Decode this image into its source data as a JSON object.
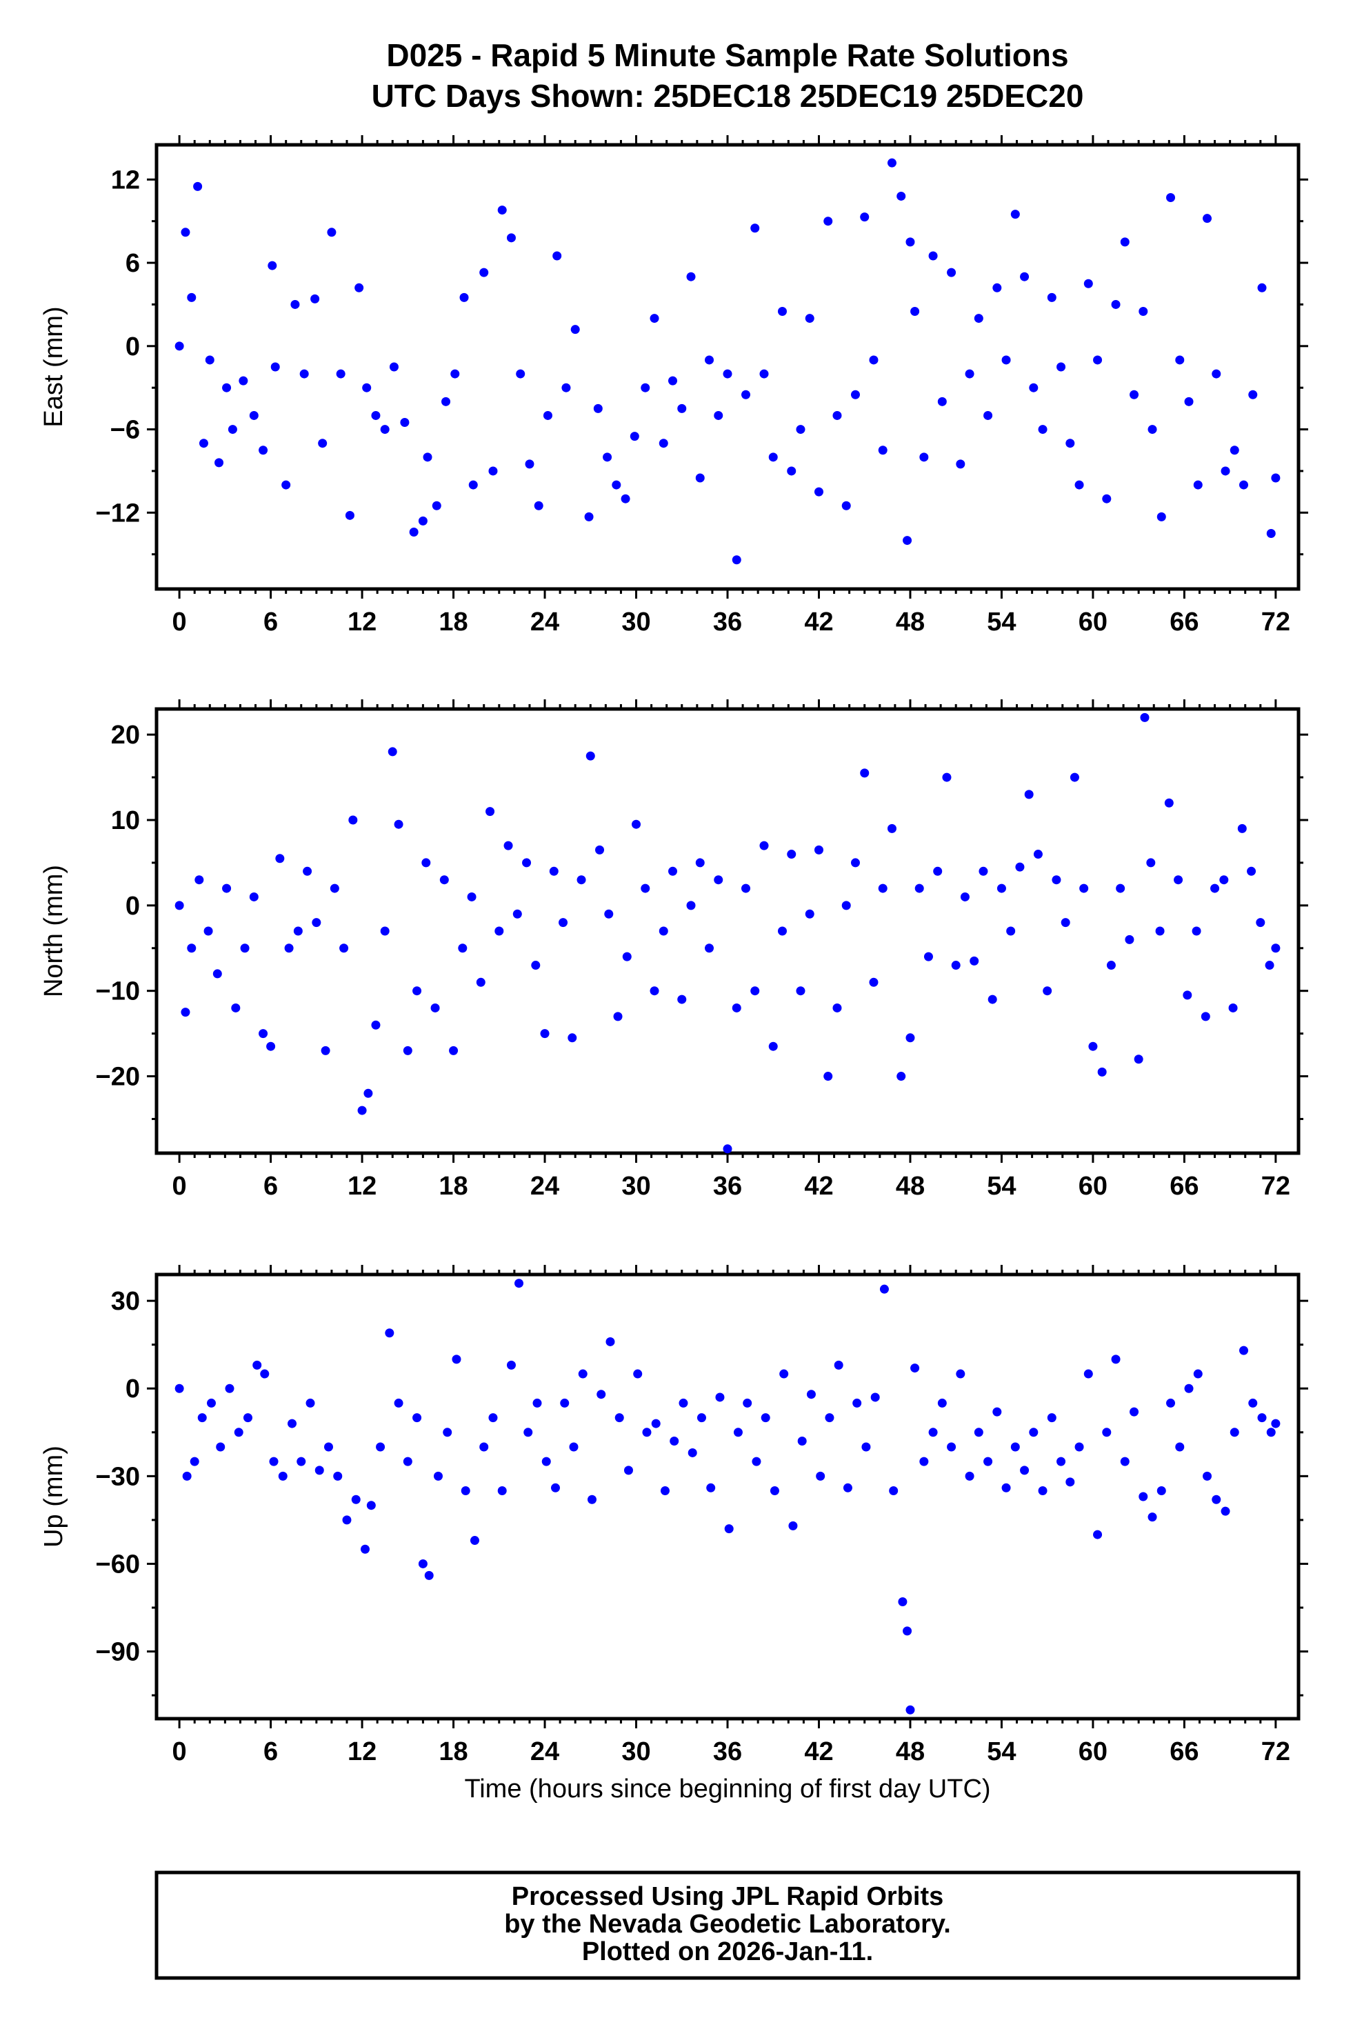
{
  "chart_data": [
    {
      "type": "scatter",
      "title": "D025 - Rapid 5 Minute Sample Rate Solutions",
      "subtitle": "UTC Days Shown:  25DEC18 25DEC19 25DEC20",
      "xlabel": "",
      "ylabel": "East (mm)",
      "xlim": [
        -1.5,
        73.5
      ],
      "ylim": [
        -17.5,
        14.5
      ],
      "xticks": [
        0,
        6,
        12,
        18,
        24,
        30,
        36,
        42,
        48,
        54,
        60,
        66,
        72
      ],
      "yticks": [
        12,
        6,
        0,
        -6,
        -12
      ],
      "marker_color": "#0000ff",
      "series": [
        {
          "x": [
            0.0,
            0.4,
            0.8,
            1.2,
            1.6,
            2.0,
            2.6,
            3.1,
            3.5,
            4.2,
            4.9,
            5.5,
            6.1,
            6.3,
            7.0,
            7.6,
            8.2,
            8.9,
            9.4,
            10.0,
            10.6,
            11.2,
            11.8,
            12.3,
            12.9,
            13.5,
            14.1,
            14.8,
            15.4,
            16.0,
            16.3,
            16.9,
            17.5,
            18.1,
            18.7,
            19.3,
            20.0,
            20.6,
            21.2,
            21.8,
            22.4,
            23.0,
            23.6,
            24.2,
            24.8,
            25.4,
            26.0,
            26.9,
            27.5,
            28.1,
            28.7,
            29.3,
            29.9,
            30.6,
            31.2,
            31.8,
            32.4,
            33.0,
            33.6,
            34.2,
            34.8,
            35.4,
            36.0,
            36.6,
            37.2,
            37.8,
            38.4,
            39.0,
            39.6,
            40.2,
            40.8,
            41.4,
            42.0,
            42.6,
            43.2,
            43.8,
            44.4,
            45.0,
            45.6,
            46.2,
            46.8,
            47.4,
            47.8,
            48.0,
            48.3,
            48.9,
            49.5,
            50.1,
            50.7,
            51.3,
            51.9,
            52.5,
            53.1,
            53.7,
            54.3,
            54.9,
            55.5,
            56.1,
            56.7,
            57.3,
            57.9,
            58.5,
            59.1,
            59.7,
            60.3,
            60.9,
            61.5,
            62.1,
            62.7,
            63.3,
            63.9,
            64.5,
            65.1,
            65.7,
            66.3,
            66.9,
            67.5,
            68.1,
            68.7,
            69.3,
            69.9,
            70.5,
            71.1,
            71.7,
            72.0
          ],
          "y": [
            0.0,
            8.2,
            3.5,
            11.5,
            -7.0,
            -1.0,
            -8.4,
            -3.0,
            -6.0,
            -2.5,
            -5.0,
            -7.5,
            5.8,
            -1.5,
            -10.0,
            3.0,
            -2.0,
            3.4,
            -7.0,
            8.2,
            -2.0,
            -12.2,
            4.2,
            -3.0,
            -5.0,
            -6.0,
            -1.5,
            -5.5,
            -13.4,
            -12.6,
            -8.0,
            -11.5,
            -4.0,
            -2.0,
            3.5,
            -10.0,
            5.3,
            -9.0,
            9.8,
            7.8,
            -2.0,
            -8.5,
            -11.5,
            -5.0,
            6.5,
            -3.0,
            1.2,
            -12.3,
            -4.5,
            -8.0,
            -10.0,
            -11.0,
            -6.5,
            -3.0,
            2.0,
            -7.0,
            -2.5,
            -4.5,
            5.0,
            -9.5,
            -1.0,
            -5.0,
            -2.0,
            -15.4,
            -3.5,
            8.5,
            -2.0,
            -8.0,
            2.5,
            -9.0,
            -6.0,
            2.0,
            -10.5,
            9.0,
            -5.0,
            -11.5,
            -3.5,
            9.3,
            -1.0,
            -7.5,
            13.2,
            10.8,
            -14.0,
            7.5,
            2.5,
            -8.0,
            6.5,
            -4.0,
            5.3,
            -8.5,
            -2.0,
            2.0,
            -5.0,
            4.2,
            -1.0,
            9.5,
            5.0,
            -3.0,
            -6.0,
            3.5,
            -1.5,
            -7.0,
            -10.0,
            4.5,
            -1.0,
            -11.0,
            3.0,
            7.5,
            -3.5,
            2.5,
            -6.0,
            -12.3,
            10.7,
            -1.0,
            -4.0,
            -10.0,
            9.2,
            -2.0,
            -9.0,
            -7.5,
            -10.0,
            -3.5,
            4.2,
            -13.5,
            -9.5
          ]
        }
      ]
    },
    {
      "type": "scatter",
      "xlabel": "",
      "ylabel": "North (mm)",
      "xlim": [
        -1.5,
        73.5
      ],
      "ylim": [
        -29.0,
        23.0
      ],
      "xticks": [
        0,
        6,
        12,
        18,
        24,
        30,
        36,
        42,
        48,
        54,
        60,
        66,
        72
      ],
      "yticks": [
        20,
        10,
        0,
        -10,
        -20
      ],
      "marker_color": "#0000ff",
      "series": [
        {
          "x": [
            0.0,
            0.4,
            0.8,
            1.3,
            1.9,
            2.5,
            3.1,
            3.7,
            4.3,
            4.9,
            5.5,
            6.0,
            6.6,
            7.2,
            7.8,
            8.4,
            9.0,
            9.6,
            10.2,
            10.8,
            11.4,
            12.0,
            12.4,
            12.9,
            13.5,
            14.0,
            14.4,
            15.0,
            15.6,
            16.2,
            16.8,
            17.4,
            18.0,
            18.6,
            19.2,
            19.8,
            20.4,
            21.0,
            21.6,
            22.2,
            22.8,
            23.4,
            24.0,
            24.6,
            25.2,
            25.8,
            26.4,
            27.0,
            27.6,
            28.2,
            28.8,
            29.4,
            30.0,
            30.6,
            31.2,
            31.8,
            32.4,
            33.0,
            33.6,
            34.2,
            34.8,
            35.4,
            36.0,
            36.6,
            37.2,
            37.8,
            38.4,
            39.0,
            39.6,
            40.2,
            40.8,
            41.4,
            42.0,
            42.6,
            43.2,
            43.8,
            44.4,
            45.0,
            45.6,
            46.2,
            46.8,
            47.4,
            48.0,
            48.6,
            49.2,
            49.8,
            50.4,
            51.0,
            51.6,
            52.2,
            52.8,
            53.4,
            54.0,
            54.6,
            55.2,
            55.8,
            56.4,
            57.0,
            57.6,
            58.2,
            58.8,
            59.4,
            60.0,
            60.6,
            61.2,
            61.8,
            62.4,
            63.0,
            63.4,
            63.8,
            64.4,
            65.0,
            65.6,
            66.2,
            66.8,
            67.4,
            68.0,
            68.6,
            69.2,
            69.8,
            70.4,
            71.0,
            71.6,
            72.0
          ],
          "y": [
            0.0,
            -12.5,
            -5.0,
            3.0,
            -3.0,
            -8.0,
            2.0,
            -12.0,
            -5.0,
            1.0,
            -15.0,
            -16.5,
            5.5,
            -5.0,
            -3.0,
            4.0,
            -2.0,
            -17.0,
            2.0,
            -5.0,
            10.0,
            -24.0,
            -22.0,
            -14.0,
            -3.0,
            18.0,
            9.5,
            -17.0,
            -10.0,
            5.0,
            -12.0,
            3.0,
            -17.0,
            -5.0,
            1.0,
            -9.0,
            11.0,
            -3.0,
            7.0,
            -1.0,
            5.0,
            -7.0,
            -15.0,
            4.0,
            -2.0,
            -15.5,
            3.0,
            17.5,
            6.5,
            -1.0,
            -13.0,
            -6.0,
            9.5,
            2.0,
            -10.0,
            -3.0,
            4.0,
            -11.0,
            0.0,
            5.0,
            -5.0,
            3.0,
            -28.5,
            -12.0,
            2.0,
            -10.0,
            7.0,
            -16.5,
            -3.0,
            6.0,
            -10.0,
            -1.0,
            6.5,
            -20.0,
            -12.0,
            0.0,
            5.0,
            15.5,
            -9.0,
            2.0,
            9.0,
            -20.0,
            -15.5,
            2.0,
            -6.0,
            4.0,
            15.0,
            -7.0,
            1.0,
            -6.5,
            4.0,
            -11.0,
            2.0,
            -3.0,
            4.5,
            13.0,
            6.0,
            -10.0,
            3.0,
            -2.0,
            15.0,
            2.0,
            -16.5,
            -19.5,
            -7.0,
            2.0,
            -4.0,
            -18.0,
            22.0,
            5.0,
            -3.0,
            12.0,
            3.0,
            -10.5,
            -3.0,
            -13.0,
            2.0,
            3.0,
            -12.0,
            9.0,
            4.0,
            -2.0,
            -7.0,
            -5.0
          ]
        }
      ]
    },
    {
      "type": "scatter",
      "xlabel": "Time (hours since beginning of first day UTC)",
      "ylabel": "Up (mm)",
      "xlim": [
        -1.5,
        73.5
      ],
      "ylim": [
        -113.0,
        39.0
      ],
      "xticks": [
        0,
        6,
        12,
        18,
        24,
        30,
        36,
        42,
        48,
        54,
        60,
        66,
        72
      ],
      "yticks": [
        30,
        0,
        -30,
        -60,
        -90
      ],
      "marker_color": "#0000ff",
      "series": [
        {
          "x": [
            0.0,
            0.5,
            1.0,
            1.5,
            2.1,
            2.7,
            3.3,
            3.9,
            4.5,
            5.1,
            5.6,
            6.2,
            6.8,
            7.4,
            8.0,
            8.6,
            9.2,
            9.8,
            10.4,
            11.0,
            11.6,
            12.2,
            12.6,
            13.2,
            13.8,
            14.4,
            15.0,
            15.6,
            16.0,
            16.4,
            17.0,
            17.6,
            18.2,
            18.8,
            19.4,
            20.0,
            20.6,
            21.2,
            21.8,
            22.3,
            22.9,
            23.5,
            24.1,
            24.7,
            25.3,
            25.9,
            26.5,
            27.1,
            27.7,
            28.3,
            28.9,
            29.5,
            30.1,
            30.7,
            31.3,
            31.9,
            32.5,
            33.1,
            33.7,
            34.3,
            34.9,
            35.5,
            36.1,
            36.7,
            37.3,
            37.9,
            38.5,
            39.1,
            39.7,
            40.3,
            40.9,
            41.5,
            42.1,
            42.7,
            43.3,
            43.9,
            44.5,
            45.1,
            45.7,
            46.3,
            46.9,
            47.5,
            47.8,
            48.0,
            48.3,
            48.9,
            49.5,
            50.1,
            50.7,
            51.3,
            51.9,
            52.5,
            53.1,
            53.7,
            54.3,
            54.9,
            55.5,
            56.1,
            56.7,
            57.3,
            57.9,
            58.5,
            59.1,
            59.7,
            60.3,
            60.9,
            61.5,
            62.1,
            62.7,
            63.3,
            63.9,
            64.5,
            65.1,
            65.7,
            66.3,
            66.9,
            67.5,
            68.1,
            68.7,
            69.3,
            69.9,
            70.5,
            71.1,
            71.7,
            72.0
          ],
          "y": [
            0.0,
            -30.0,
            -25.0,
            -10.0,
            -5.0,
            -20.0,
            0.0,
            -15.0,
            -10.0,
            8.0,
            5.0,
            -25.0,
            -30.0,
            -12.0,
            -25.0,
            -5.0,
            -28.0,
            -20.0,
            -30.0,
            -45.0,
            -38.0,
            -55.0,
            -40.0,
            -20.0,
            19.0,
            -5.0,
            -25.0,
            -10.0,
            -60.0,
            -64.0,
            -30.0,
            -15.0,
            10.0,
            -35.0,
            -52.0,
            -20.0,
            -10.0,
            -35.0,
            8.0,
            36.0,
            -15.0,
            -5.0,
            -25.0,
            -34.0,
            -5.0,
            -20.0,
            5.0,
            -38.0,
            -2.0,
            16.0,
            -10.0,
            -28.0,
            5.0,
            -15.0,
            -12.0,
            -35.0,
            -18.0,
            -5.0,
            -22.0,
            -10.0,
            -34.0,
            -3.0,
            -48.0,
            -15.0,
            -5.0,
            -25.0,
            -10.0,
            -35.0,
            5.0,
            -47.0,
            -18.0,
            -2.0,
            -30.0,
            -10.0,
            8.0,
            -34.0,
            -5.0,
            -20.0,
            -3.0,
            34.0,
            -35.0,
            -73.0,
            -83.0,
            -110.0,
            7.0,
            -25.0,
            -15.0,
            -5.0,
            -20.0,
            5.0,
            -30.0,
            -15.0,
            -25.0,
            -8.0,
            -34.0,
            -20.0,
            -28.0,
            -15.0,
            -35.0,
            -10.0,
            -25.0,
            -32.0,
            -20.0,
            5.0,
            -50.0,
            -15.0,
            10.0,
            -25.0,
            -8.0,
            -37.0,
            -44.0,
            -35.0,
            -5.0,
            -20.0,
            0.0,
            5.0,
            -30.0,
            -38.0,
            -42.0,
            -15.0,
            13.0,
            -5.0,
            -10.0,
            -15.0,
            -12.0
          ]
        }
      ]
    }
  ],
  "footer": {
    "line1": "Processed Using JPL Rapid Orbits",
    "line2": "by the Nevada Geodetic Laboratory.",
    "line3": "Plotted on 2026-Jan-11."
  }
}
